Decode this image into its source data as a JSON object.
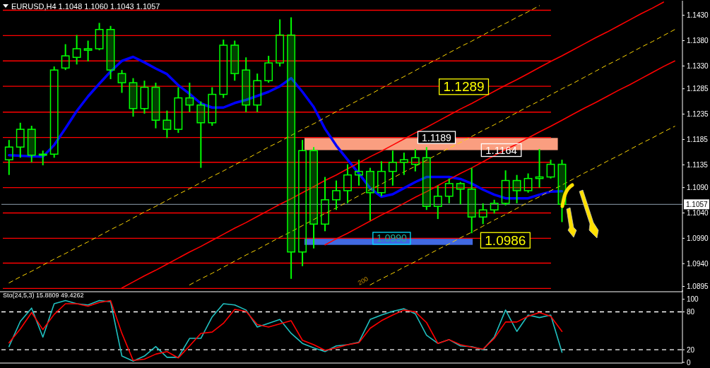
{
  "chart_data": [
    {
      "type": "candlestick",
      "title": "EURUSD,H4  1.1048 1.1060 1.1043 1.1057",
      "tick_labels": "y",
      "categories": [
        null,
        null,
        null,
        null,
        null,
        null,
        null,
        null,
        null,
        null,
        null,
        null,
        null,
        null,
        null,
        null,
        null,
        null,
        null,
        null,
        null,
        null,
        null,
        null,
        null,
        null,
        null,
        null,
        null,
        null,
        null,
        null,
        null,
        null,
        null,
        null,
        null,
        null,
        null,
        null,
        null,
        null,
        null,
        null,
        null,
        null,
        null,
        null,
        null,
        null,
        null,
        null,
        null,
        null,
        null,
        null,
        null,
        null,
        null,
        null
      ],
      "color": "#00ff00",
      "ohlc": [
        [
          1.1145,
          1.1184,
          1.1115,
          1.117
        ],
        [
          1.117,
          1.1218,
          1.1149,
          1.1205
        ],
        [
          1.1205,
          1.1212,
          1.114,
          1.1154
        ],
        [
          1.1154,
          1.1163,
          1.1134,
          1.1156
        ],
        [
          1.1156,
          1.1329,
          1.1149,
          1.1322
        ],
        [
          1.1326,
          1.1373,
          1.1322,
          1.135
        ],
        [
          1.1347,
          1.1391,
          1.1333,
          1.1364
        ],
        [
          1.1364,
          1.138,
          1.1339,
          1.1361
        ],
        [
          1.1364,
          1.1415,
          1.1361,
          1.1402
        ],
        [
          1.1402,
          1.1409,
          1.1304,
          1.1322
        ],
        [
          1.1315,
          1.1322,
          1.1277,
          1.1297
        ],
        [
          1.1297,
          1.1306,
          1.123,
          1.1246
        ],
        [
          1.1246,
          1.1301,
          1.1236,
          1.1288
        ],
        [
          1.1288,
          1.1297,
          1.1207,
          1.1223
        ],
        [
          1.1223,
          1.1242,
          1.1188,
          1.1205
        ],
        [
          1.1205,
          1.1288,
          1.1198,
          1.1267
        ],
        [
          1.1267,
          1.1297,
          1.1239,
          1.1253
        ],
        [
          1.1253,
          1.126,
          1.1129,
          1.1218
        ],
        [
          1.1218,
          1.1288,
          1.1212,
          1.1274
        ],
        [
          1.1274,
          1.1382,
          1.1267,
          1.1371
        ],
        [
          1.1371,
          1.138,
          1.1301,
          1.1315
        ],
        [
          1.1322,
          1.1347,
          1.1239,
          1.1253
        ],
        [
          1.1253,
          1.1315,
          1.1239,
          1.1301
        ],
        [
          1.1301,
          1.135,
          1.1297,
          1.1336
        ],
        [
          1.1336,
          1.1422,
          1.1329,
          1.1391
        ],
        [
          1.1391,
          1.1426,
          1.091,
          1.0963
        ],
        [
          1.0963,
          1.1184,
          1.0935,
          1.1163
        ],
        [
          1.1163,
          1.117,
          1.097,
          1.1018
        ],
        [
          1.1018,
          1.1111,
          1.1004,
          1.1066
        ],
        [
          1.1066,
          1.1104,
          1.1046,
          1.1084
        ],
        [
          1.1084,
          1.1136,
          1.1059,
          1.1115
        ],
        [
          1.1115,
          1.1145,
          1.1094,
          1.1122
        ],
        [
          1.1122,
          1.1129,
          1.1025,
          1.108
        ],
        [
          1.108,
          1.1142,
          1.1073,
          1.1122
        ],
        [
          1.1122,
          1.1163,
          1.1094,
          1.114
        ],
        [
          1.114,
          1.1159,
          1.1115,
          1.1145
        ],
        [
          1.1136,
          1.1166,
          1.1122,
          1.1149
        ],
        [
          1.1149,
          1.117,
          1.1046,
          1.1053
        ],
        [
          1.1053,
          1.1094,
          1.1028,
          1.1073
        ],
        [
          1.1073,
          1.1108,
          1.1059,
          1.1098
        ],
        [
          1.1098,
          1.1101,
          1.1057,
          1.1087
        ],
        [
          1.1087,
          1.1129,
          1.1,
          1.1032
        ],
        [
          1.1032,
          1.1059,
          1.1018,
          1.1046
        ],
        [
          1.1046,
          1.1066,
          1.1039,
          1.1059
        ],
        [
          1.1059,
          1.1124,
          1.1055,
          1.1104
        ],
        [
          1.1104,
          1.1115,
          1.1059,
          1.1084
        ],
        [
          1.1084,
          1.1118,
          1.108,
          1.1108
        ],
        [
          1.1108,
          1.1166,
          1.109,
          1.1111
        ],
        [
          1.1111,
          1.1145,
          1.1108,
          1.1136
        ],
        [
          1.1136,
          1.1145,
          1.1022,
          1.1057
        ],
        null,
        null,
        null,
        null,
        null,
        null,
        null,
        null,
        null,
        null
      ],
      "series": [
        {
          "type": "line",
          "color": "#0000ff",
          "values": [
            1.1154,
            1.1153,
            1.1152,
            1.1151,
            1.1174,
            1.1207,
            1.1241,
            1.127,
            1.1295,
            1.1319,
            1.134,
            1.1348,
            1.1337,
            1.1325,
            1.1314,
            1.1292,
            1.1275,
            1.1256,
            1.1248,
            1.1248,
            1.1257,
            1.1263,
            1.1271,
            1.1279,
            1.129,
            1.1306,
            1.1279,
            1.1249,
            1.1206,
            1.1173,
            1.1145,
            1.1118,
            1.1089,
            1.1072,
            1.1077,
            1.1089,
            1.1101,
            1.1111,
            1.1111,
            1.1111,
            1.1107,
            1.1098,
            1.1086,
            1.1076,
            1.1069,
            1.1069,
            1.1069,
            1.1076,
            1.1082,
            1.1083,
            null,
            null,
            null,
            null,
            null,
            null,
            null,
            null,
            null,
            null
          ]
        },
        {
          "type": "line",
          "color": "#ffd700",
          "line_style": "dashed",
          "values": [
            1.0902,
            1.0914,
            1.0925,
            1.0937,
            1.0949,
            1.096,
            1.0972,
            1.0983,
            1.0995,
            1.1007,
            1.1018,
            1.103,
            1.1042,
            1.1053,
            1.1065,
            1.1077,
            1.1088,
            1.11,
            1.1112,
            1.1123,
            1.1135,
            1.1146,
            1.1158,
            1.117,
            1.1181,
            1.1193,
            1.1205,
            1.1216,
            1.1228,
            1.124,
            1.1251,
            1.1263,
            1.1274,
            1.1286,
            1.1298,
            1.1309,
            1.1321,
            1.1333,
            1.1344,
            1.1356,
            1.1368,
            1.1379,
            1.1391,
            1.1403,
            1.1414,
            1.1426,
            1.1437,
            1.1449,
            null,
            null,
            null,
            null,
            null,
            null,
            null,
            null,
            null,
            null,
            null,
            null
          ]
        },
        {
          "type": "line",
          "color": "#ffd700",
          "line_style": "dashed",
          "values": [
            null,
            null,
            null,
            null,
            null,
            null,
            null,
            null,
            null,
            null,
            null,
            null,
            null,
            null,
            null,
            null,
            1.0898,
            1.091,
            1.0921,
            1.0933,
            1.0945,
            1.0957,
            1.0968,
            1.098,
            1.0992,
            1.1003,
            1.1015,
            1.1027,
            1.1039,
            1.105,
            1.1062,
            1.1074,
            1.1086,
            1.1097,
            1.1109,
            1.1121,
            1.1132,
            1.1144,
            1.1156,
            1.1168,
            1.1179,
            1.1191,
            1.1203,
            1.1214,
            1.1226,
            1.1238,
            1.125,
            1.1261,
            1.1273,
            1.1285,
            1.1296,
            1.1308,
            1.132,
            1.1332,
            1.1343,
            1.1355,
            1.1367,
            1.1378,
            1.139,
            1.1402
          ]
        },
        {
          "type": "line",
          "color": "#ffd700",
          "line_style": "dashed",
          "values": [
            null,
            null,
            null,
            null,
            null,
            null,
            null,
            null,
            null,
            null,
            null,
            null,
            null,
            null,
            null,
            null,
            null,
            null,
            null,
            null,
            null,
            null,
            null,
            null,
            null,
            null,
            null,
            null,
            null,
            null,
            null,
            null,
            1.0898,
            1.091,
            1.0921,
            1.0933,
            1.0944,
            1.0956,
            1.0968,
            1.0979,
            1.0991,
            1.1002,
            1.1014,
            1.1026,
            1.1037,
            1.1049,
            1.1061,
            1.1072,
            1.1084,
            1.1095,
            1.1107,
            1.1119,
            1.113,
            1.1142,
            1.1153,
            1.1165,
            1.1177,
            1.1188,
            1.12,
            1.1211
          ]
        },
        {
          "type": "line",
          "color": "#ff0000",
          "values": [
            null,
            null,
            null,
            null,
            null,
            null,
            null,
            null,
            null,
            null,
            1.0892,
            1.0904,
            1.0916,
            1.0927,
            1.0939,
            1.0951,
            1.0963,
            1.0974,
            1.0986,
            1.0998,
            1.101,
            1.1021,
            1.1033,
            1.1045,
            1.1057,
            1.1068,
            1.108,
            1.1092,
            1.1104,
            1.1115,
            1.1127,
            1.1139,
            1.1151,
            1.1162,
            1.1174,
            1.1186,
            1.1198,
            1.1209,
            1.1221,
            1.1233,
            1.1245,
            1.1256,
            1.1268,
            1.128,
            1.1292,
            1.1303,
            1.1315,
            1.1327,
            1.1339,
            1.135,
            1.1362,
            1.1374,
            1.1386,
            1.1397,
            1.1409,
            1.1421,
            1.1433,
            1.1444,
            1.1456,
            null
          ]
        },
        {
          "type": "line",
          "color": "#ff0000",
          "values": [
            null,
            null,
            null,
            null,
            null,
            null,
            null,
            null,
            null,
            null,
            null,
            null,
            null,
            null,
            null,
            null,
            null,
            null,
            null,
            null,
            null,
            null,
            null,
            null,
            null,
            null,
            null,
            null,
            1.0977,
            1.0989,
            1.1,
            1.1012,
            1.1024,
            1.1036,
            1.1047,
            1.1059,
            1.1071,
            1.1082,
            1.1094,
            1.1106,
            1.1118,
            1.1129,
            1.1141,
            1.1153,
            1.1165,
            1.1176,
            1.1188,
            1.12,
            1.1211,
            1.1223,
            1.1235,
            1.1247,
            1.1258,
            1.127,
            1.1282,
            1.1293,
            1.1305,
            1.1317,
            1.1329,
            1.134
          ]
        }
      ],
      "ylim": [
        1.0886,
        1.1456
      ],
      "yticks": [
        {
          "value": 1.143,
          "label": "1.1430"
        },
        {
          "value": 1.138,
          "label": "1.1380"
        },
        {
          "value": 1.133,
          "label": "1.1330"
        },
        1.1285,
        1.1235,
        1.1185,
        1.1135,
        {
          "value": 1.109,
          "label": "1.1090"
        },
        {
          "value": 1.104,
          "label": "1.1040"
        },
        {
          "value": 1.099,
          "label": "1.0990"
        },
        {
          "value": 1.094,
          "label": "1.0940"
        },
        1.0895
      ],
      "ref_lines": [
        {
          "axis": "y",
          "value": 1.144,
          "color": "#ff0000"
        },
        {
          "axis": "y",
          "value": 1.139,
          "color": "#ff0000"
        },
        {
          "axis": "y",
          "value": 1.134,
          "color": "#ff0000"
        },
        {
          "axis": "y",
          "value": 1.129,
          "color": "#ff0000"
        },
        {
          "axis": "y",
          "value": 1.1239,
          "color": "#ff0000"
        },
        {
          "axis": "y",
          "value": 1.1189,
          "color": "#ff0000"
        },
        {
          "axis": "y",
          "value": 1.114,
          "color": "#ff0000"
        },
        {
          "axis": "y",
          "value": 1.109,
          "color": "#ff0000"
        },
        {
          "axis": "y",
          "value": 1.104,
          "color": "#ff0000"
        },
        {
          "axis": "y",
          "value": 1.099,
          "color": "#ff0000"
        },
        {
          "axis": "y",
          "value": 1.0941,
          "color": "#ff0000"
        },
        {
          "axis": "y",
          "value": 1.0891,
          "color": "#ff0000"
        },
        {
          "axis": "y",
          "value": 1.1057,
          "color": "#90a0b0",
          "label": "1.1057"
        }
      ],
      "bands": [
        {
          "axis": "y",
          "from": 1.1164,
          "to": 1.1188,
          "color": "#fa9e80"
        },
        {
          "axis": "y",
          "from": 1.0977,
          "to": 1.0989,
          "color": "#4169e1"
        }
      ],
      "annotations": [
        {
          "text": "1.1289",
          "y": 1.1289
        },
        {
          "text": "1.1189",
          "y": 1.1189
        },
        {
          "text": "1.1164",
          "y": 1.1164
        },
        {
          "text": "1.0990",
          "y": 1.099
        },
        {
          "text": "1.0986",
          "y": 1.0986
        },
        "200"
      ]
    },
    {
      "type": "line",
      "title": "Sto(24,5,3) 15.8809 49.4262",
      "tick_labels": "y",
      "categories": [
        null,
        null,
        null,
        null,
        null,
        null,
        null,
        null,
        null,
        null,
        null,
        null,
        null,
        null,
        null,
        null,
        null,
        null,
        null,
        null,
        null,
        null,
        null,
        null,
        null,
        null,
        null,
        null,
        null,
        null,
        null,
        null,
        null,
        null,
        null,
        null,
        null,
        null,
        null,
        null,
        null,
        null,
        null,
        null,
        null,
        null,
        null,
        null,
        null,
        null,
        null,
        null,
        null,
        null,
        null,
        null,
        null,
        null,
        null,
        null
      ],
      "series": [
        {
          "color": "#20c0c0",
          "values": [
            25,
            65,
            86,
            40,
            93,
            98,
            93,
            91,
            98,
            96,
            10,
            2,
            10,
            25,
            8,
            8,
            38,
            38,
            72,
            93,
            91,
            83,
            56,
            62,
            68,
            46,
            30,
            23,
            17,
            26,
            28,
            32,
            68,
            75,
            81,
            85,
            77,
            43,
            30,
            36,
            26,
            25,
            20,
            40,
            83,
            49,
            75,
            71,
            75,
            16,
            null,
            null,
            null,
            null,
            null,
            null,
            null,
            null,
            null,
            null
          ]
        },
        {
          "color": "#ff0000",
          "values": [
            31,
            53,
            79,
            52,
            76,
            93,
            93,
            89,
            95,
            98,
            46,
            3,
            5,
            13,
            17,
            7,
            26,
            46,
            48,
            62,
            84,
            81,
            60,
            56,
            61,
            66,
            35,
            28,
            19,
            23,
            28,
            31,
            54,
            66,
            75,
            83,
            80,
            63,
            30,
            36,
            28,
            24,
            21,
            38,
            64,
            64,
            73,
            79,
            73,
            49,
            null,
            null,
            null,
            null,
            null,
            null,
            null,
            null,
            null,
            null
          ]
        }
      ],
      "ylim": [
        0,
        112
      ],
      "yticks": [
        0,
        20,
        80,
        100
      ],
      "ref_lines": [
        {
          "axis": "y",
          "value": 80,
          "color": "#ffffff",
          "line_style": "dashed"
        },
        {
          "axis": "y",
          "value": 20,
          "color": "#ffffff",
          "line_style": "dashed"
        }
      ]
    }
  ]
}
